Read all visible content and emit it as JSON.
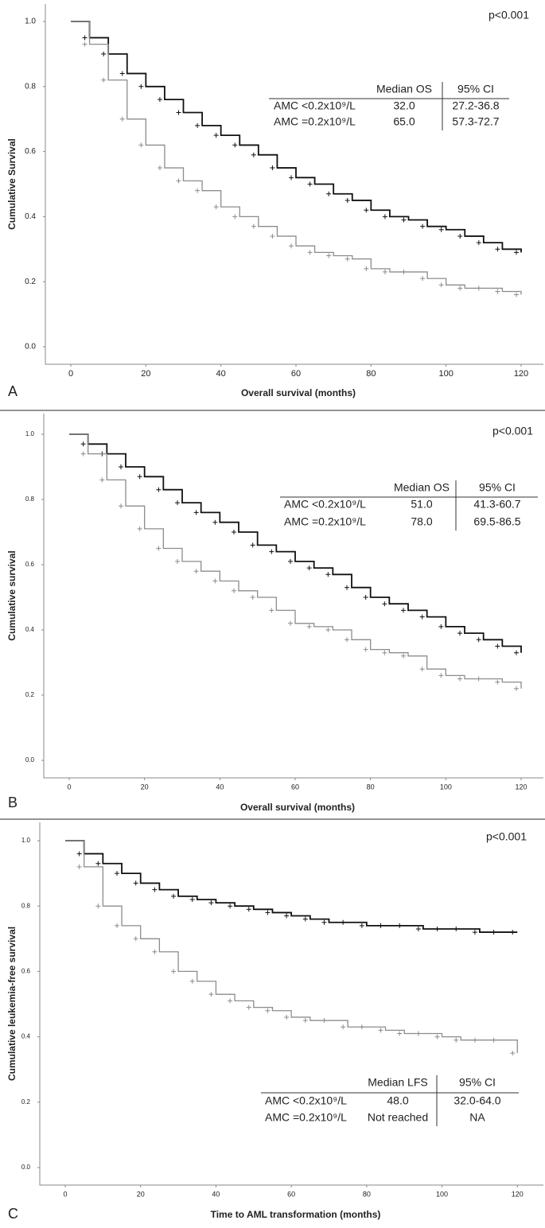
{
  "chart_data": [
    {
      "type": "step",
      "panel_label": "A",
      "annotation": "p<0.001",
      "xlabel": "Overall survival (months)",
      "ylabel": "Cumulative Survival",
      "x": [
        0,
        5,
        10,
        15,
        20,
        25,
        30,
        35,
        40,
        45,
        50,
        55,
        60,
        65,
        70,
        75,
        80,
        85,
        90,
        95,
        100,
        105,
        110,
        115,
        120
      ],
      "series": [
        {
          "color": "#111111",
          "values": [
            1.0,
            0.95,
            0.9,
            0.84,
            0.8,
            0.76,
            0.72,
            0.68,
            0.65,
            0.62,
            0.59,
            0.55,
            0.52,
            0.5,
            0.47,
            0.45,
            0.42,
            0.4,
            0.39,
            0.37,
            0.36,
            0.34,
            0.32,
            0.3,
            0.29
          ]
        },
        {
          "color": "#8c8c8c",
          "values": [
            1.0,
            0.93,
            0.82,
            0.7,
            0.62,
            0.55,
            0.51,
            0.48,
            0.43,
            0.4,
            0.37,
            0.34,
            0.31,
            0.29,
            0.28,
            0.27,
            0.24,
            0.23,
            0.23,
            0.21,
            0.19,
            0.18,
            0.18,
            0.17,
            0.16
          ]
        }
      ],
      "xlim": [
        -5,
        126
      ],
      "ylim": [
        0,
        1
      ],
      "xticks": [
        0,
        20,
        40,
        60,
        80,
        100,
        120
      ],
      "yticks": [
        {
          "value": 0,
          "label": "0.0"
        },
        0.2,
        0.4,
        0.6,
        0.8,
        {
          "value": 1,
          "label": "1.0"
        }
      ],
      "table": {
        "header": [
          "Median OS",
          "95% CI"
        ],
        "rows": [
          [
            "AMC <0.2x10⁹/L",
            "32.0",
            "27.2-36.8"
          ],
          [
            "AMC =0.2x10⁹/L",
            "65.0",
            "57.3-72.7"
          ]
        ]
      }
    },
    {
      "type": "step",
      "panel_label": "B",
      "annotation": "p<0.001",
      "xlabel": "Overall survival (months)",
      "ylabel": "Cumulative survival",
      "x": [
        0,
        5,
        10,
        15,
        20,
        25,
        30,
        35,
        40,
        45,
        50,
        55,
        60,
        65,
        70,
        75,
        80,
        85,
        90,
        95,
        100,
        105,
        110,
        115,
        120
      ],
      "series": [
        {
          "color": "#111111",
          "values": [
            1.0,
            0.97,
            0.94,
            0.9,
            0.87,
            0.83,
            0.79,
            0.76,
            0.73,
            0.7,
            0.66,
            0.64,
            0.61,
            0.59,
            0.57,
            0.53,
            0.5,
            0.48,
            0.46,
            0.44,
            0.41,
            0.39,
            0.37,
            0.35,
            0.33
          ]
        },
        {
          "color": "#8c8c8c",
          "values": [
            1.0,
            0.94,
            0.86,
            0.78,
            0.71,
            0.65,
            0.61,
            0.58,
            0.55,
            0.52,
            0.5,
            0.46,
            0.42,
            0.41,
            0.4,
            0.37,
            0.34,
            0.33,
            0.32,
            0.28,
            0.26,
            0.25,
            0.25,
            0.24,
            0.22
          ]
        }
      ],
      "xlim": [
        -5,
        126
      ],
      "ylim": [
        0,
        1
      ],
      "xticks": [
        0,
        20,
        40,
        60,
        80,
        100,
        120
      ],
      "yticks": [
        {
          "value": 0,
          "label": "0.0"
        },
        0.2,
        0.4,
        0.6,
        0.8,
        {
          "value": 1,
          "label": "1.0"
        }
      ],
      "table": {
        "header": [
          "Median OS",
          "95% CI"
        ],
        "rows": [
          [
            "AMC <0.2x10⁹/L",
            "51.0",
            "41.3-60.7"
          ],
          [
            "AMC =0.2x10⁹/L",
            "78.0",
            "69.5-86.5"
          ]
        ]
      }
    },
    {
      "type": "step",
      "panel_label": "C",
      "annotation": "p<0.001",
      "xlabel": "Time to AML transformation (months)",
      "ylabel": "Cumulative leukemia-free survival",
      "x": [
        0,
        5,
        10,
        15,
        20,
        25,
        30,
        35,
        40,
        45,
        50,
        55,
        60,
        65,
        70,
        75,
        80,
        85,
        90,
        95,
        100,
        105,
        110,
        115,
        120
      ],
      "series": [
        {
          "color": "#111111",
          "values": [
            1.0,
            0.96,
            0.93,
            0.9,
            0.87,
            0.85,
            0.83,
            0.82,
            0.81,
            0.8,
            0.79,
            0.78,
            0.77,
            0.76,
            0.75,
            0.75,
            0.74,
            0.74,
            0.74,
            0.73,
            0.73,
            0.73,
            0.72,
            0.72,
            0.72
          ]
        },
        {
          "color": "#8c8c8c",
          "values": [
            1.0,
            0.92,
            0.8,
            0.74,
            0.7,
            0.66,
            0.6,
            0.57,
            0.53,
            0.51,
            0.49,
            0.48,
            0.46,
            0.45,
            0.45,
            0.43,
            0.43,
            0.42,
            0.41,
            0.41,
            0.4,
            0.39,
            0.39,
            0.39,
            0.35
          ]
        }
      ],
      "xlim": [
        -6,
        127
      ],
      "ylim": [
        0,
        1
      ],
      "xticks": [
        0,
        20,
        40,
        60,
        80,
        100,
        120
      ],
      "yticks": [
        {
          "value": 0,
          "label": "0.0"
        },
        0.2,
        0.4,
        0.6,
        0.8,
        {
          "value": 1,
          "label": "1.0"
        }
      ],
      "table": {
        "header": [
          "Median LFS",
          "95% CI"
        ],
        "rows": [
          [
            "AMC <0.2x10⁹/L",
            "48.0",
            "32.0-64.0"
          ],
          [
            "AMC =0.2x10⁹/L",
            "Not reached",
            "NA"
          ]
        ]
      }
    }
  ]
}
